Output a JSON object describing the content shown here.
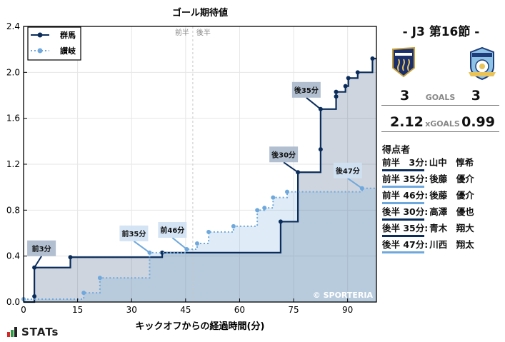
{
  "chart_data": {
    "type": "line",
    "subtype": "step",
    "title": "ゴール期待値",
    "xlabel": "キックオフからの経過時間(分)",
    "ylabel": "",
    "xlim": [
      0,
      98
    ],
    "ylim": [
      0,
      2.4
    ],
    "xticks": [
      0,
      15,
      30,
      45,
      60,
      75,
      90
    ],
    "yticks": [
      0.0,
      0.4,
      0.8,
      1.2,
      1.6,
      2.0,
      2.4
    ],
    "ytick_labels": [
      "0.0",
      "0.4",
      "0.8",
      "1.2",
      "1.6",
      "2.0",
      "2.4"
    ],
    "grid": true,
    "legend_position": "upper left",
    "half_marker": {
      "x": 47,
      "left_label": "前半",
      "right_label": "後半"
    },
    "series": [
      {
        "name": "群馬",
        "color": "#0b2d5b",
        "style": "solid",
        "points": [
          [
            0,
            0.0
          ],
          [
            3,
            0.05
          ],
          [
            3,
            0.3
          ],
          [
            13,
            0.39
          ],
          [
            38.5,
            0.43
          ],
          [
            71.4,
            0.7
          ],
          [
            76.2,
            1.13
          ],
          [
            82.5,
            1.33
          ],
          [
            82.5,
            1.68
          ],
          [
            86.8,
            1.79
          ],
          [
            86.8,
            1.83
          ],
          [
            89.4,
            1.88
          ],
          [
            90.2,
            1.95
          ],
          [
            92.8,
            2.0
          ],
          [
            96.9,
            2.12
          ],
          [
            98,
            2.12
          ]
        ],
        "goals": [
          {
            "x": 3,
            "y": 0.3,
            "label": "前3分"
          },
          {
            "x": 76.2,
            "y": 1.13,
            "label": "後30分"
          },
          {
            "x": 82.5,
            "y": 1.68,
            "label": "後35分"
          }
        ]
      },
      {
        "name": "讃岐",
        "color": "#6fa8dc",
        "style": "dotted",
        "points": [
          [
            0,
            0.025
          ],
          [
            16.7,
            0.08
          ],
          [
            21.2,
            0.21
          ],
          [
            35,
            0.43
          ],
          [
            45.3,
            0.46
          ],
          [
            48.2,
            0.51
          ],
          [
            51.4,
            0.61
          ],
          [
            58.3,
            0.66
          ],
          [
            64.9,
            0.8
          ],
          [
            66.9,
            0.82
          ],
          [
            69.3,
            0.91
          ],
          [
            73.2,
            0.96
          ],
          [
            94,
            0.99
          ],
          [
            98,
            0.99
          ]
        ],
        "goals": [
          {
            "x": 35,
            "y": 0.43,
            "label": "前35分"
          },
          {
            "x": 45.3,
            "y": 0.46,
            "label": "前46分"
          },
          {
            "x": 94,
            "y": 0.99,
            "label": "後47分"
          }
        ]
      }
    ],
    "annotation": "© SPORTERIA"
  },
  "match": {
    "title": "-  J3 第16節  -",
    "home": {
      "name": "群馬",
      "goals": "3",
      "xg": "2.12",
      "color": "#0b2d5b"
    },
    "away": {
      "name": "讃岐",
      "goals": "3",
      "xg": "0.99",
      "color": "#6fa8dc"
    },
    "goals_label": "GOALS",
    "xg_label": "xGOALS"
  },
  "scorers": {
    "title": "得点者",
    "items": [
      {
        "time": "前半　3分",
        "player": "山中　惇希",
        "team": "home"
      },
      {
        "time": "前半 35分",
        "player": "後藤　優介",
        "team": "away"
      },
      {
        "time": "前半 46分",
        "player": "後藤　優介",
        "team": "away"
      },
      {
        "time": "後半 30分",
        "player": "高澤　優也",
        "team": "home"
      },
      {
        "time": "後半 35分",
        "player": "青木　翔大",
        "team": "home"
      },
      {
        "time": "後半 47分",
        "player": "川西　翔太",
        "team": "away"
      }
    ]
  },
  "branding": {
    "stats_logo": "STATs",
    "icon": "bar-chart-icon"
  }
}
